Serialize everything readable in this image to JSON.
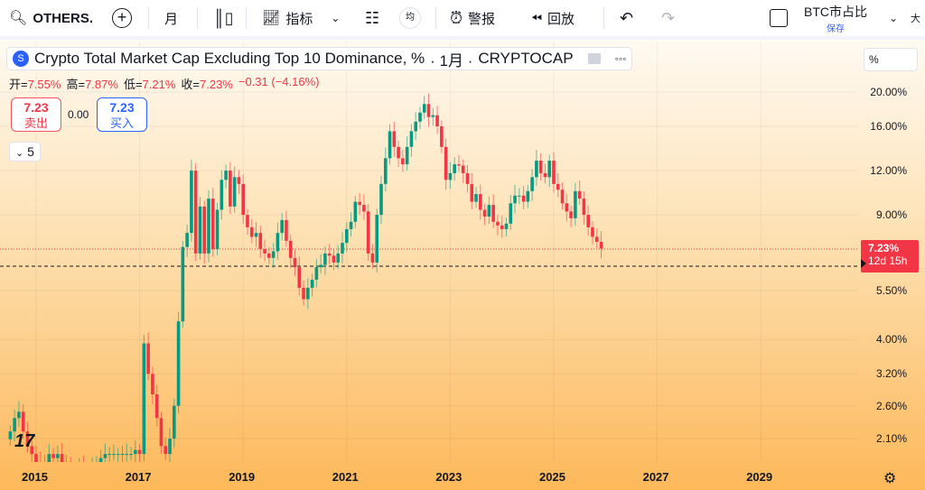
{
  "toolbar": {
    "symbol": "OTHERS.",
    "interval": "月",
    "indicators": "指标",
    "avg": "均",
    "alert": "警报",
    "replay": "回放",
    "layout_name": "BTC市占比",
    "save": "保存",
    "more": "大"
  },
  "legend": {
    "title": "Crypto Total Market Cap Excluding Top 10 Dominance, %",
    "interval": "· 1月 ·",
    "exchange": "CRYPTOCAP"
  },
  "ohlc": {
    "o_label": "开=",
    "o": "7.55%",
    "h_label": "高=",
    "h": "7.87%",
    "l_label": "低=",
    "l": "7.21%",
    "c_label": "收=",
    "c": "7.23%",
    "change": "−0.31 (−4.16%)"
  },
  "trade": {
    "sell_price": "7.23",
    "sell_label": "卖出",
    "spread": "0.00",
    "buy_price": "7.23",
    "buy_label": "买入"
  },
  "indicators_toggle": "5",
  "scale_mode": "%",
  "price_axis": {
    "ticks": [
      "20.00%",
      "16.00%",
      "12.00%",
      "9.00%",
      "5.50%",
      "4.00%",
      "3.20%",
      "2.60%",
      "2.10%"
    ],
    "last_price": "7.23%",
    "countdown": "12d 15h"
  },
  "time_axis": [
    "2015",
    "2017",
    "2019",
    "2021",
    "2023",
    "2025",
    "2027",
    "2029"
  ],
  "colors": {
    "up": "#089981",
    "down": "#f23645",
    "accent": "#2962ff"
  },
  "chart_data": {
    "type": "candlestick",
    "scale": "log",
    "ylim": [
      1.8,
      22
    ],
    "start": "2014-07",
    "xlim": [
      "2014-06",
      "2030-06"
    ],
    "closes": [
      2.2,
      2.4,
      2.5,
      2.2,
      2.0,
      1.9,
      1.8,
      1.7,
      1.8,
      1.9,
      1.85,
      1.9,
      1.8,
      1.75,
      1.7,
      1.7,
      1.75,
      1.7,
      1.7,
      1.75,
      1.8,
      1.85,
      1.9,
      1.9,
      1.9,
      1.9,
      1.9,
      1.9,
      1.9,
      1.95,
      1.9,
      3.9,
      3.2,
      2.8,
      2.4,
      2.0,
      1.9,
      2.1,
      2.6,
      4.5,
      7.3,
      8.0,
      12.0,
      7.0,
      9.5,
      7.0,
      10.0,
      7.2,
      9.3,
      11.3,
      12.0,
      9.5,
      11.5,
      11.0,
      9.0,
      8.3,
      7.8,
      8.0,
      7.2,
      7.0,
      6.8,
      7.1,
      8.0,
      8.7,
      7.6,
      6.8,
      6.4,
      5.6,
      5.2,
      5.6,
      5.9,
      6.4,
      6.5,
      7.0,
      6.9,
      6.6,
      7.0,
      7.5,
      8.2,
      8.6,
      9.8,
      9.6,
      9.2,
      7.0,
      6.6,
      9.0,
      11.0,
      13.0,
      15.5,
      14.0,
      13.0,
      12.5,
      14.0,
      15.5,
      16.5,
      17.5,
      18.5,
      17.0,
      17.2,
      16.0,
      14.0,
      11.3,
      11.8,
      12.5,
      12.4,
      11.8,
      11.0,
      9.8,
      10.3,
      9.3,
      8.9,
      9.6,
      8.6,
      8.4,
      8.2,
      8.5,
      9.7,
      10.2,
      10.2,
      9.8,
      10.5,
      11.5,
      12.8,
      11.8,
      11.5,
      12.8,
      11.0,
      10.6,
      9.7,
      9.2,
      8.8,
      10.5,
      10.0,
      9.0,
      8.3,
      7.8,
      7.55,
      7.23
    ]
  }
}
